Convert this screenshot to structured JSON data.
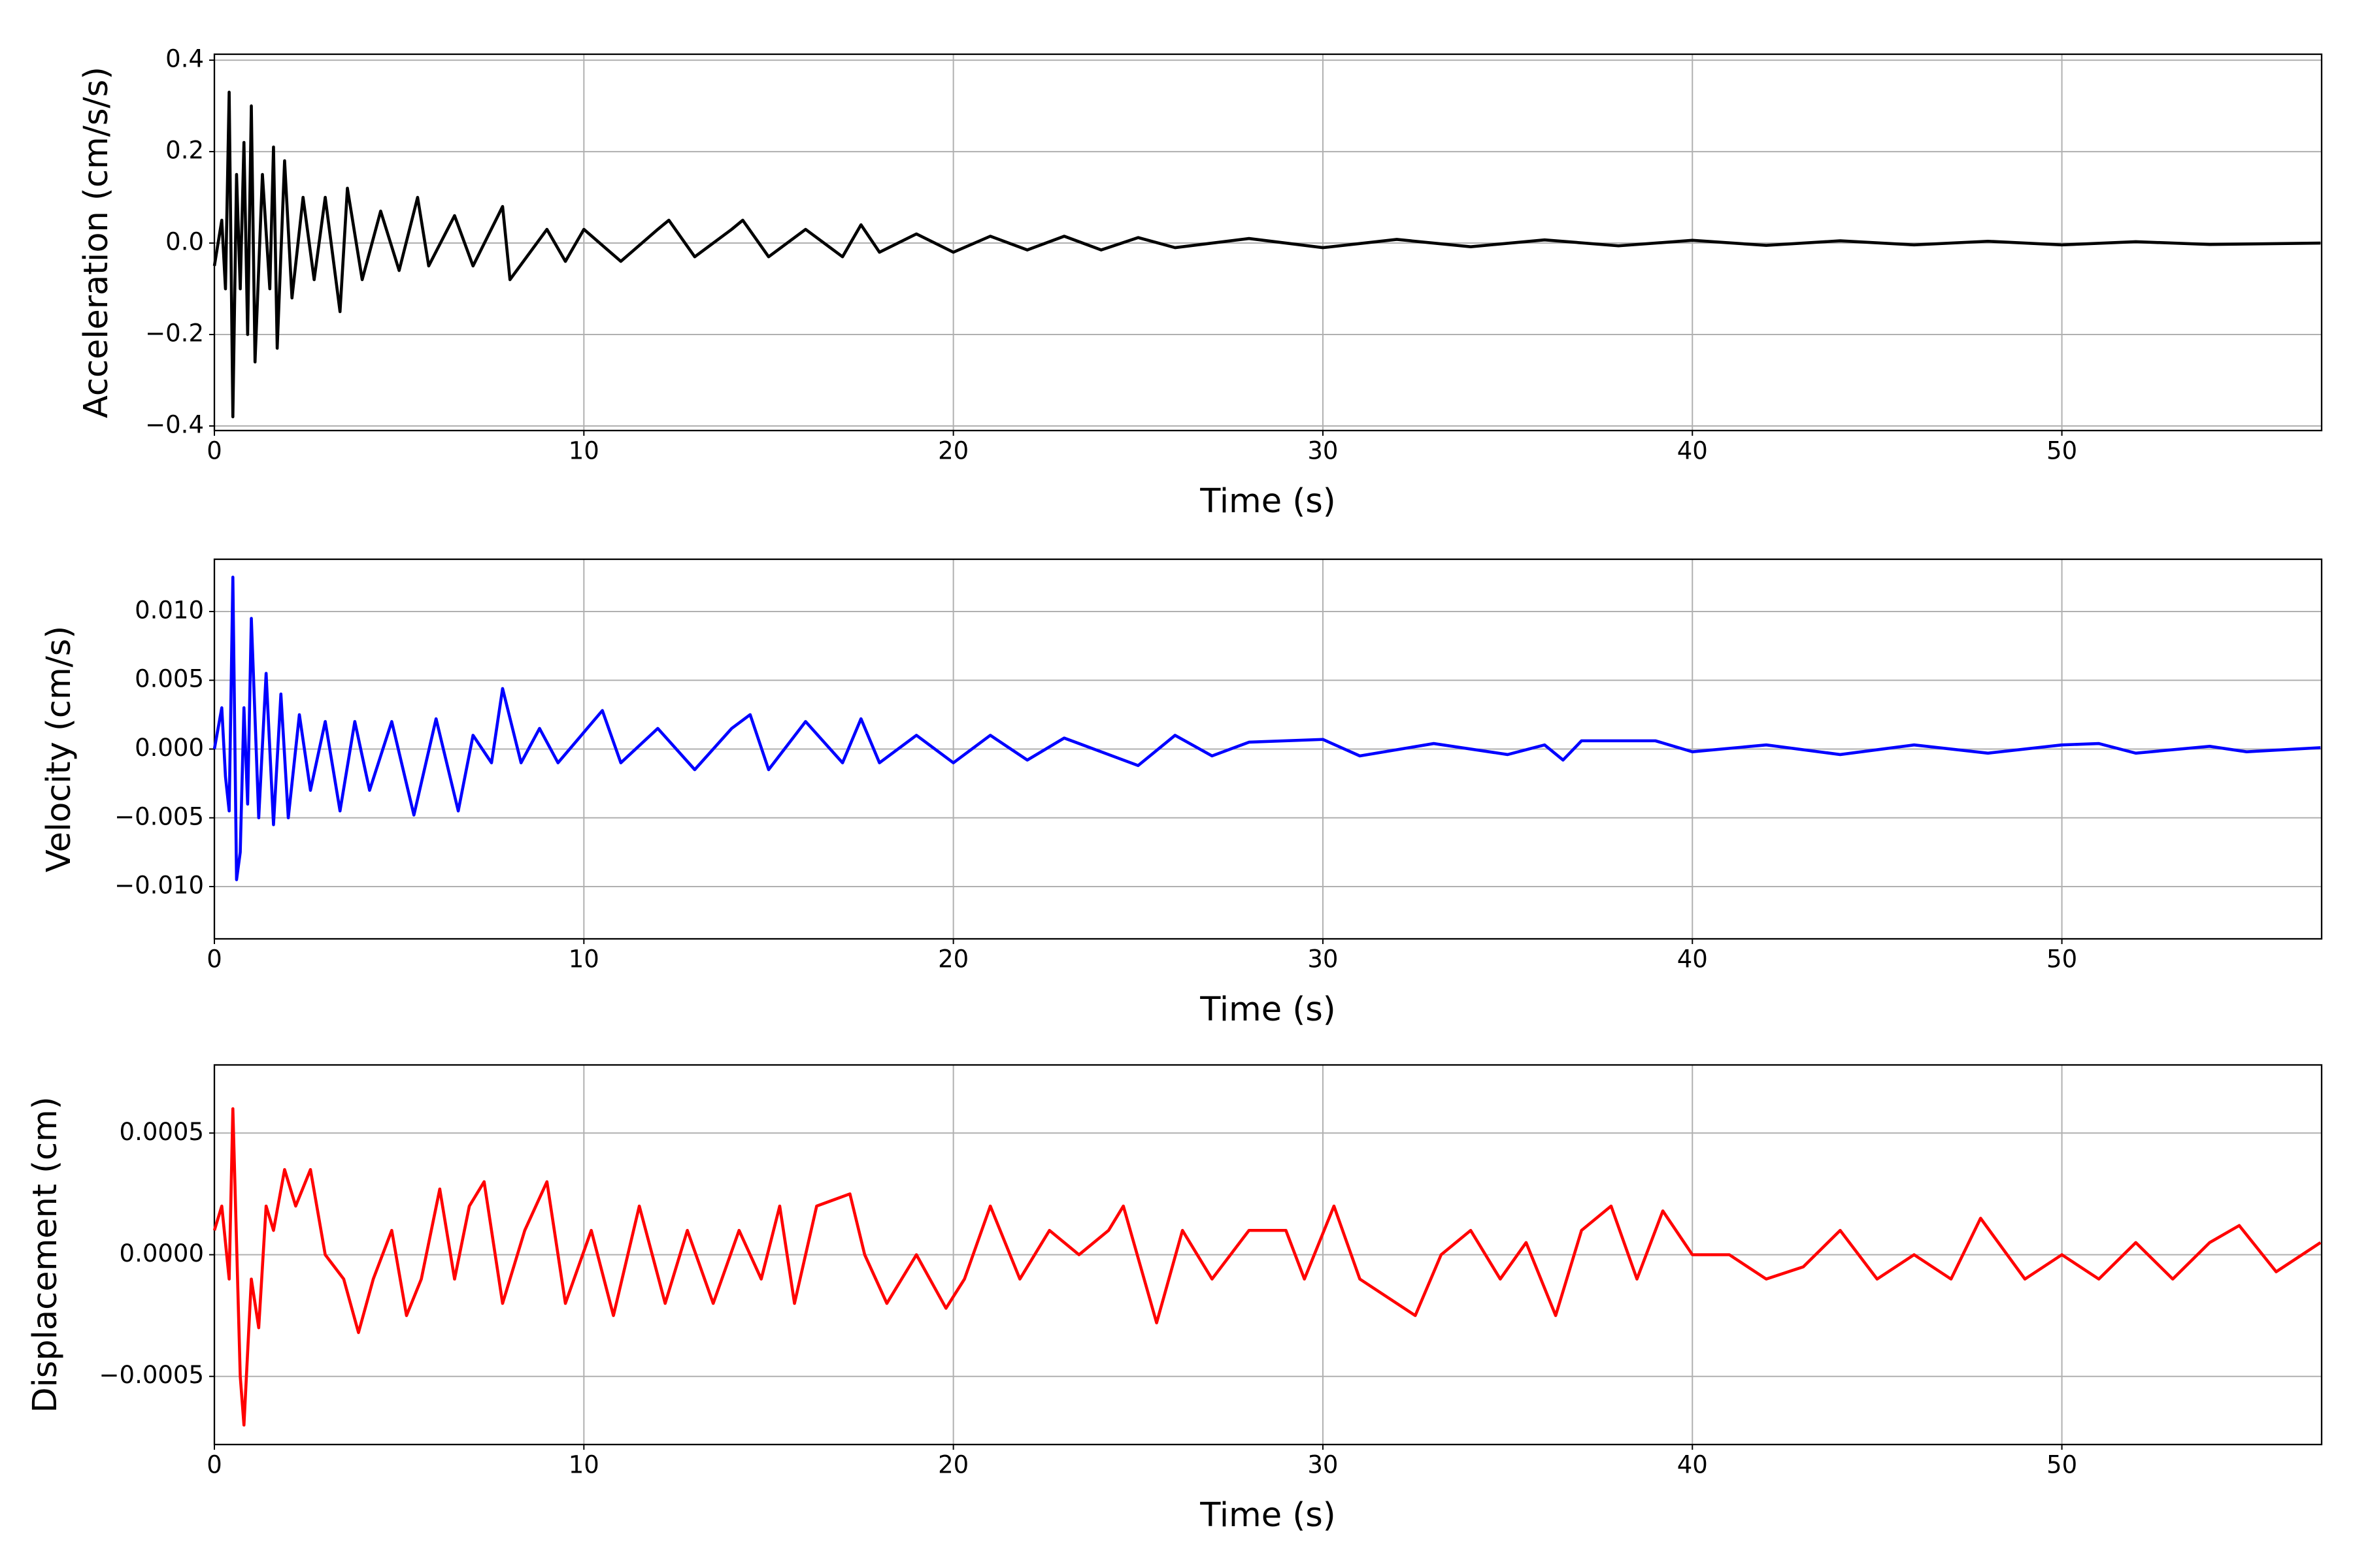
{
  "chart_data": [
    {
      "type": "line",
      "xlabel": "Time (s)",
      "ylabel": "Acceleration (cm/s/s)",
      "color": "#000000",
      "grid": true,
      "xlim": [
        0,
        57.03
      ],
      "xticks": [
        0,
        10,
        20,
        30,
        40,
        50
      ],
      "ylim": [
        -0.41,
        0.413
      ],
      "yticks": [
        {
          "value": -0.4,
          "label": "−0.4"
        },
        {
          "value": -0.2,
          "label": "−0.2"
        },
        {
          "value": 0,
          "label": "0.0"
        },
        0.2,
        0.4
      ],
      "x": [
        0,
        0.2,
        0.3,
        0.4,
        0.5,
        0.6,
        0.7,
        0.8,
        0.9,
        1.0,
        1.1,
        1.3,
        1.5,
        1.6,
        1.7,
        1.9,
        2.1,
        2.4,
        2.7,
        3.0,
        3.4,
        3.6,
        4.0,
        4.5,
        5.0,
        5.5,
        5.8,
        6.5,
        7.0,
        7.8,
        8.0,
        9,
        9.5,
        10,
        11,
        12,
        12.3,
        13,
        14,
        14.3,
        15,
        16,
        17,
        17.5,
        18,
        19,
        20,
        21,
        22,
        23,
        24,
        25,
        26,
        28,
        30,
        32,
        34,
        36,
        38,
        40,
        42,
        44,
        46,
        48,
        50,
        52,
        54,
        57
      ],
      "values": [
        -0.05,
        0.05,
        -0.1,
        0.33,
        -0.38,
        0.15,
        -0.1,
        0.22,
        -0.2,
        0.3,
        -0.26,
        0.15,
        -0.1,
        0.21,
        -0.23,
        0.18,
        -0.12,
        0.1,
        -0.08,
        0.1,
        -0.15,
        0.12,
        -0.08,
        0.07,
        -0.06,
        0.1,
        -0.05,
        0.06,
        -0.05,
        0.08,
        -0.08,
        0.03,
        -0.04,
        0.03,
        -0.04,
        0.03,
        0.05,
        -0.03,
        0.03,
        0.05,
        -0.03,
        0.03,
        -0.03,
        0.04,
        -0.02,
        0.02,
        -0.02,
        0.015,
        -0.015,
        0.015,
        -0.015,
        0.012,
        -0.01,
        0.01,
        -0.01,
        0.008,
        -0.008,
        0.007,
        -0.006,
        0.006,
        -0.005,
        0.005,
        -0.004,
        0.004,
        -0.004,
        0.003,
        -0.003,
        0
      ]
    },
    {
      "type": "line",
      "xlabel": "Time (s)",
      "ylabel": "Velocity (cm/s)",
      "color": "#0000ff",
      "grid": true,
      "xlim": [
        0,
        57.03
      ],
      "xticks": [
        0,
        10,
        20,
        30,
        40,
        50
      ],
      "ylim": [
        -0.0138,
        0.0138
      ],
      "yticks": [
        {
          "value": -0.01,
          "label": "−0.010"
        },
        {
          "value": -0.005,
          "label": "−0.005"
        },
        {
          "value": 0,
          "label": "0.000"
        },
        0.005,
        {
          "value": 0.01,
          "label": "0.010"
        }
      ],
      "x": [
        0,
        0.2,
        0.3,
        0.4,
        0.5,
        0.6,
        0.7,
        0.8,
        0.9,
        1.0,
        1.2,
        1.4,
        1.6,
        1.8,
        2.0,
        2.3,
        2.6,
        3.0,
        3.4,
        3.8,
        4.2,
        4.8,
        5.4,
        6.0,
        6.6,
        7.0,
        7.5,
        7.8,
        8.3,
        8.8,
        9.3,
        10.5,
        11,
        12,
        13,
        14,
        14.5,
        15,
        16,
        17,
        17.5,
        18,
        19,
        20,
        21,
        22,
        23,
        25,
        26,
        27,
        28,
        30,
        31,
        33,
        35,
        36,
        36.5,
        37,
        39,
        40,
        42,
        44,
        46,
        48,
        50,
        51,
        52,
        54,
        55,
        57
      ],
      "values": [
        0,
        0.003,
        -0.002,
        -0.0045,
        0.0125,
        -0.0095,
        -0.0075,
        0.003,
        -0.004,
        0.0095,
        -0.005,
        0.0055,
        -0.0055,
        0.004,
        -0.005,
        0.0025,
        -0.003,
        0.002,
        -0.0045,
        0.002,
        -0.003,
        0.002,
        -0.0048,
        0.0022,
        -0.0045,
        0.001,
        -0.001,
        0.0044,
        -0.001,
        0.0015,
        -0.001,
        0.0028,
        -0.001,
        0.0015,
        -0.0015,
        0.0015,
        0.0025,
        -0.0015,
        0.002,
        -0.001,
        0.0022,
        -0.001,
        0.001,
        -0.001,
        0.001,
        -0.0008,
        0.0008,
        -0.0012,
        0.001,
        -0.0005,
        0.0005,
        0.0007,
        -0.0005,
        0.0004,
        -0.0004,
        0.0003,
        -0.0008,
        0.0006,
        0.0006,
        -0.0002,
        0.0003,
        -0.0004,
        0.0003,
        -0.0003,
        0.0003,
        0.0004,
        -0.0003,
        0.0002,
        -0.0002,
        0.0001
      ]
    },
    {
      "type": "line",
      "xlabel": "Time (s)",
      "ylabel": "Displacement (cm)",
      "color": "#ff0000",
      "grid": true,
      "xlim": [
        0,
        57.03
      ],
      "xticks": [
        0,
        10,
        20,
        30,
        40,
        50
      ],
      "ylim": [
        -0.00078,
        0.00078
      ],
      "yticks": [
        {
          "value": -0.0005,
          "label": "−0.0005"
        },
        {
          "value": 0,
          "label": "0.0000"
        },
        0.0005
      ],
      "x": [
        0,
        0.2,
        0.4,
        0.5,
        0.7,
        0.8,
        1.0,
        1.2,
        1.4,
        1.6,
        1.9,
        2.2,
        2.6,
        3.0,
        3.5,
        3.9,
        4.3,
        4.8,
        5.2,
        5.6,
        6.1,
        6.5,
        6.9,
        7.3,
        7.8,
        8.4,
        9.0,
        9.5,
        10.2,
        10.8,
        11.5,
        12.2,
        12.8,
        13.5,
        14.2,
        14.8,
        15.3,
        15.7,
        16.3,
        17.2,
        17.6,
        18.2,
        19,
        19.8,
        20.3,
        21,
        21.8,
        22.6,
        23.4,
        24.2,
        24.6,
        25.5,
        26.2,
        27,
        28,
        29,
        29.5,
        30.3,
        31,
        32.5,
        33.2,
        34,
        34.8,
        35.5,
        36.3,
        37,
        37.8,
        38.5,
        39.2,
        40,
        41,
        42,
        43,
        44,
        45,
        46,
        47,
        47.8,
        49,
        50,
        51,
        52,
        53,
        54,
        54.8,
        55.8,
        57
      ],
      "values": [
        0.0001,
        0.0002,
        -0.0001,
        0.0006,
        -0.0005,
        -0.0007,
        -0.0001,
        -0.0003,
        0.0002,
        0.0001,
        0.00035,
        0.0002,
        0.00035,
        0,
        -0.0001,
        -0.00032,
        -0.0001,
        0.0001,
        -0.00025,
        -0.0001,
        0.00027,
        -0.0001,
        0.0002,
        0.0003,
        -0.0002,
        0.0001,
        0.0003,
        -0.0002,
        0.0001,
        -0.00025,
        0.0002,
        -0.0002,
        0.0001,
        -0.0002,
        0.0001,
        -0.0001,
        0.0002,
        -0.0002,
        0.0002,
        0.00025,
        0,
        -0.0002,
        0,
        -0.00022,
        -0.0001,
        0.0002,
        -0.0001,
        0.0001,
        0,
        0.0001,
        0.0002,
        -0.00028,
        0.0001,
        -0.0001,
        0.0001,
        0.0001,
        -0.0001,
        0.0002,
        -0.0001,
        -0.00025,
        0,
        0.0001,
        -0.0001,
        5e-05,
        -0.00025,
        0.0001,
        0.0002,
        -0.0001,
        0.00018,
        0,
        0,
        -0.0001,
        -5e-05,
        0.0001,
        -0.0001,
        0,
        -0.0001,
        0.00015,
        -0.0001,
        0,
        -0.0001,
        5e-05,
        -0.0001,
        5e-05,
        0.00012,
        -7e-05,
        5e-05
      ]
    }
  ]
}
